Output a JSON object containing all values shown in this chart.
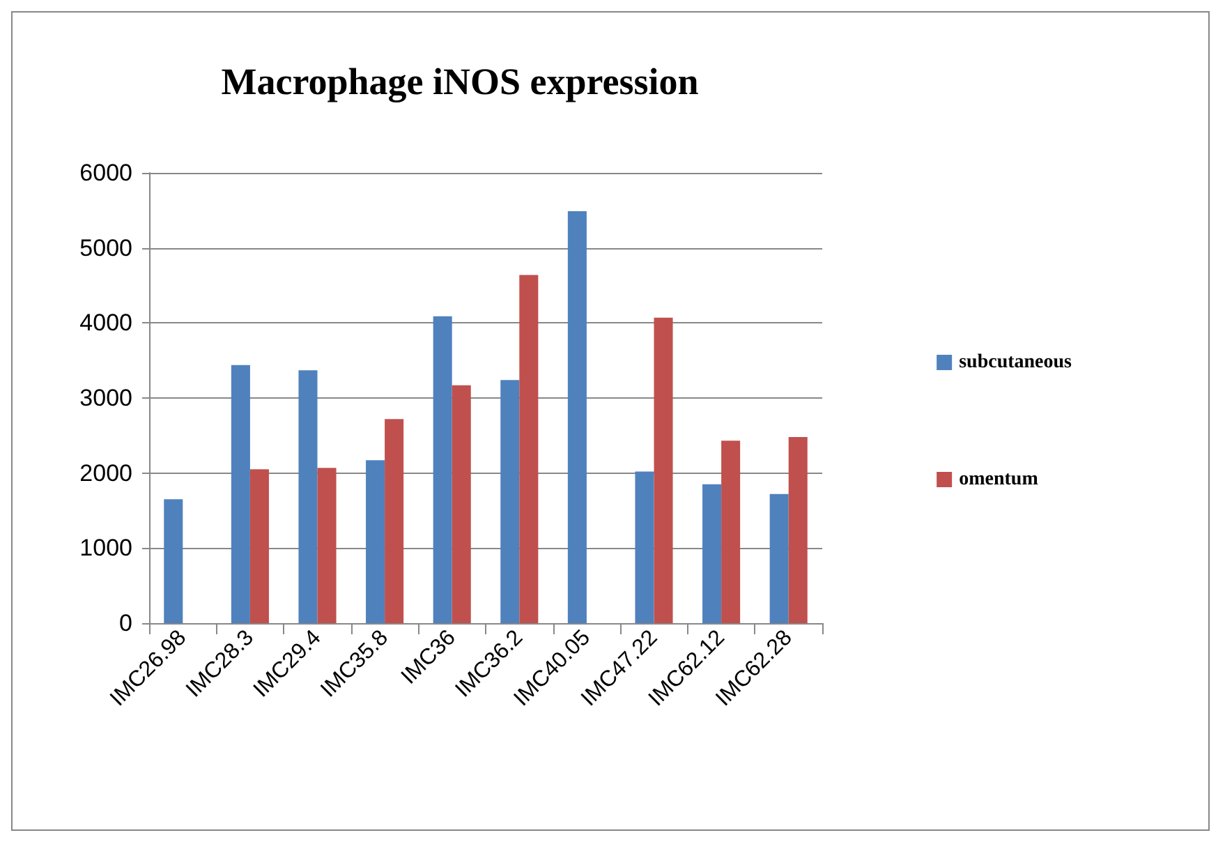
{
  "chart_data": {
    "type": "bar",
    "title": "Macrophage iNOS expression",
    "categories": [
      "IMC26.98",
      "IMC28.3",
      "IMC29.4",
      "IMC35.8",
      "IMC36",
      "IMC36.2",
      "IMC40.05",
      "IMC47.22",
      "IMC62.12",
      "IMC62.28"
    ],
    "series": [
      {
        "name": "subcutaneous",
        "color": "#4f81bd",
        "values": [
          1650,
          3440,
          3370,
          2170,
          4090,
          3240,
          5490,
          2020,
          1850,
          1720
        ]
      },
      {
        "name": "omentum",
        "color": "#c0504d",
        "values": [
          null,
          2050,
          2070,
          2720,
          3170,
          4640,
          null,
          4070,
          2430,
          2480
        ]
      }
    ],
    "ylim": [
      0,
      6000
    ],
    "yticks": [
      0,
      1000,
      2000,
      3000,
      4000,
      5000,
      6000
    ],
    "grid": "y",
    "legend": "right"
  }
}
